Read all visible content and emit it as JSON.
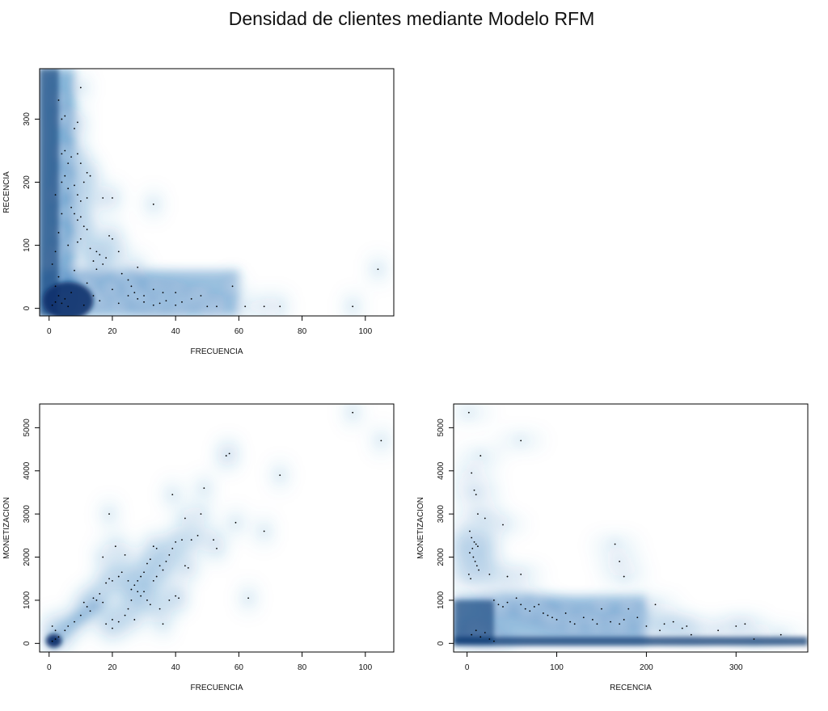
{
  "title": "Densidad de clientes mediante Modelo RFM",
  "colors": {
    "density_dark": "#08306b",
    "density_mid": "#2b7bba",
    "density_light": "#c6dbef",
    "background": "#ffffff",
    "points": "#000000"
  },
  "chart_data": [
    {
      "type": "scatter",
      "subtype": "smooth-density-scatter",
      "xlabel": "FRECUENCIA",
      "ylabel": "RECENCIA",
      "xlim": [
        -3,
        109
      ],
      "ylim": [
        -12,
        380
      ],
      "xticks": [
        0,
        20,
        40,
        60,
        80,
        100
      ],
      "yticks": [
        0,
        100,
        200,
        300
      ],
      "grid": false,
      "points": [
        [
          1,
          5
        ],
        [
          2,
          10
        ],
        [
          3,
          20
        ],
        [
          2,
          35
        ],
        [
          4,
          8
        ],
        [
          5,
          15
        ],
        [
          6,
          3
        ],
        [
          7,
          25
        ],
        [
          3,
          50
        ],
        [
          1,
          70
        ],
        [
          2,
          90
        ],
        [
          3,
          120
        ],
        [
          4,
          150
        ],
        [
          2,
          180
        ],
        [
          4,
          200
        ],
        [
          5,
          210
        ],
        [
          6,
          190
        ],
        [
          7,
          240
        ],
        [
          4,
          245
        ],
        [
          5,
          250
        ],
        [
          6,
          230
        ],
        [
          4,
          300
        ],
        [
          3,
          330
        ],
        [
          5,
          305
        ],
        [
          8,
          285
        ],
        [
          9,
          295
        ],
        [
          10,
          350
        ],
        [
          9,
          245
        ],
        [
          10,
          230
        ],
        [
          12,
          215
        ],
        [
          13,
          210
        ],
        [
          11,
          200
        ],
        [
          8,
          195
        ],
        [
          9,
          180
        ],
        [
          12,
          175
        ],
        [
          10,
          170
        ],
        [
          7,
          160
        ],
        [
          8,
          150
        ],
        [
          9,
          140
        ],
        [
          10,
          145
        ],
        [
          11,
          130
        ],
        [
          12,
          125
        ],
        [
          10,
          110
        ],
        [
          9,
          105
        ],
        [
          13,
          95
        ],
        [
          15,
          90
        ],
        [
          14,
          75
        ],
        [
          16,
          85
        ],
        [
          18,
          80
        ],
        [
          17,
          70
        ],
        [
          20,
          110
        ],
        [
          19,
          115
        ],
        [
          22,
          90
        ],
        [
          25,
          45
        ],
        [
          26,
          35
        ],
        [
          27,
          25
        ],
        [
          28,
          15
        ],
        [
          30,
          10
        ],
        [
          33,
          5
        ],
        [
          35,
          8
        ],
        [
          37,
          12
        ],
        [
          40,
          5
        ],
        [
          42,
          10
        ],
        [
          45,
          15
        ],
        [
          48,
          20
        ],
        [
          33,
          30
        ],
        [
          36,
          25
        ],
        [
          30,
          20
        ],
        [
          25,
          20
        ],
        [
          20,
          30
        ],
        [
          17,
          175
        ],
        [
          20,
          175
        ],
        [
          33,
          165
        ],
        [
          15,
          62
        ],
        [
          23,
          55
        ],
        [
          28,
          65
        ],
        [
          40,
          25
        ],
        [
          50,
          3
        ],
        [
          53,
          3
        ],
        [
          58,
          35
        ],
        [
          62,
          3
        ],
        [
          68,
          3
        ],
        [
          73,
          3
        ],
        [
          96,
          3
        ],
        [
          104,
          62
        ],
        [
          12,
          40
        ],
        [
          14,
          20
        ],
        [
          8,
          60
        ],
        [
          6,
          100
        ],
        [
          11,
          5
        ],
        [
          16,
          12
        ],
        [
          22,
          8
        ]
      ]
    },
    {
      "type": "scatter",
      "subtype": "smooth-density-scatter",
      "xlabel": "FRECUENCIA",
      "ylabel": "MONETIZACION",
      "xlim": [
        -3,
        109
      ],
      "ylim": [
        -200,
        5550
      ],
      "xticks": [
        0,
        20,
        40,
        60,
        80,
        100
      ],
      "yticks": [
        0,
        1000,
        2000,
        3000,
        4000,
        5000
      ],
      "grid": false,
      "points": [
        [
          1,
          50
        ],
        [
          2,
          100
        ],
        [
          3,
          150
        ],
        [
          1,
          400
        ],
        [
          2,
          300
        ],
        [
          5,
          300
        ],
        [
          6,
          400
        ],
        [
          8,
          500
        ],
        [
          10,
          650
        ],
        [
          12,
          850
        ],
        [
          11,
          950
        ],
        [
          14,
          1050
        ],
        [
          16,
          1150
        ],
        [
          17,
          950
        ],
        [
          18,
          1400
        ],
        [
          19,
          1500
        ],
        [
          20,
          1450
        ],
        [
          17,
          2000
        ],
        [
          19,
          3000
        ],
        [
          21,
          2250
        ],
        [
          22,
          1550
        ],
        [
          23,
          1650
        ],
        [
          24,
          2050
        ],
        [
          25,
          1450
        ],
        [
          26,
          1250
        ],
        [
          27,
          1350
        ],
        [
          28,
          1450
        ],
        [
          29,
          1550
        ],
        [
          30,
          1650
        ],
        [
          31,
          1850
        ],
        [
          32,
          1950
        ],
        [
          33,
          2250
        ],
        [
          34,
          2200
        ],
        [
          35,
          1800
        ],
        [
          36,
          1700
        ],
        [
          37,
          1900
        ],
        [
          38,
          2050
        ],
        [
          39,
          2200
        ],
        [
          40,
          2350
        ],
        [
          42,
          2400
        ],
        [
          43,
          1800
        ],
        [
          44,
          1750
        ],
        [
          45,
          2400
        ],
        [
          47,
          2500
        ],
        [
          48,
          3000
        ],
        [
          49,
          3600
        ],
        [
          52,
          2400
        ],
        [
          53,
          2200
        ],
        [
          56,
          4350
        ],
        [
          57,
          4400
        ],
        [
          59,
          2800
        ],
        [
          63,
          1050
        ],
        [
          68,
          2600
        ],
        [
          73,
          3900
        ],
        [
          96,
          5350
        ],
        [
          105,
          4700
        ],
        [
          39,
          3450
        ],
        [
          43,
          2900
        ],
        [
          30,
          1200
        ],
        [
          31,
          1000
        ],
        [
          32,
          900
        ],
        [
          35,
          800
        ],
        [
          36,
          450
        ],
        [
          38,
          1000
        ],
        [
          40,
          1100
        ],
        [
          41,
          1050
        ],
        [
          25,
          800
        ],
        [
          24,
          650
        ],
        [
          27,
          550
        ],
        [
          22,
          500
        ],
        [
          20,
          550
        ],
        [
          18,
          450
        ],
        [
          20,
          350
        ],
        [
          26,
          1000
        ],
        [
          28,
          1200
        ],
        [
          29,
          1100
        ],
        [
          33,
          1450
        ],
        [
          34,
          1550
        ],
        [
          15,
          1000
        ],
        [
          13,
          750
        ]
      ]
    },
    {
      "type": "scatter",
      "subtype": "smooth-density-scatter",
      "xlabel": "RECENCIA",
      "ylabel": "MONETIZACION",
      "xlim": [
        -15,
        380
      ],
      "ylim": [
        -200,
        5550
      ],
      "xticks": [
        0,
        100,
        200,
        300
      ],
      "yticks": [
        0,
        1000,
        2000,
        3000,
        4000,
        5000
      ],
      "grid": false,
      "points": [
        [
          2,
          5350
        ],
        [
          60,
          4700
        ],
        [
          15,
          4350
        ],
        [
          5,
          3950
        ],
        [
          8,
          3550
        ],
        [
          10,
          3450
        ],
        [
          12,
          3000
        ],
        [
          20,
          2900
        ],
        [
          40,
          2750
        ],
        [
          3,
          2600
        ],
        [
          5,
          2450
        ],
        [
          8,
          2350
        ],
        [
          10,
          2300
        ],
        [
          12,
          2250
        ],
        [
          6,
          2200
        ],
        [
          3,
          2100
        ],
        [
          7,
          2000
        ],
        [
          9,
          1900
        ],
        [
          11,
          1800
        ],
        [
          13,
          1700
        ],
        [
          2,
          1600
        ],
        [
          4,
          1500
        ],
        [
          25,
          1600
        ],
        [
          45,
          1550
        ],
        [
          60,
          1600
        ],
        [
          165,
          2300
        ],
        [
          170,
          1900
        ],
        [
          175,
          1550
        ],
        [
          30,
          1000
        ],
        [
          35,
          900
        ],
        [
          40,
          850
        ],
        [
          45,
          950
        ],
        [
          55,
          1050
        ],
        [
          60,
          900
        ],
        [
          65,
          800
        ],
        [
          70,
          750
        ],
        [
          75,
          850
        ],
        [
          80,
          900
        ],
        [
          85,
          700
        ],
        [
          90,
          650
        ],
        [
          95,
          600
        ],
        [
          100,
          550
        ],
        [
          110,
          700
        ],
        [
          115,
          500
        ],
        [
          120,
          450
        ],
        [
          130,
          600
        ],
        [
          140,
          550
        ],
        [
          145,
          450
        ],
        [
          150,
          800
        ],
        [
          160,
          500
        ],
        [
          170,
          450
        ],
        [
          175,
          550
        ],
        [
          180,
          800
        ],
        [
          190,
          600
        ],
        [
          200,
          400
        ],
        [
          210,
          900
        ],
        [
          215,
          300
        ],
        [
          220,
          450
        ],
        [
          230,
          500
        ],
        [
          240,
          350
        ],
        [
          245,
          400
        ],
        [
          250,
          200
        ],
        [
          280,
          300
        ],
        [
          300,
          400
        ],
        [
          310,
          450
        ],
        [
          320,
          100
        ],
        [
          350,
          200
        ],
        [
          5,
          200
        ],
        [
          10,
          300
        ],
        [
          15,
          150
        ],
        [
          20,
          250
        ],
        [
          25,
          100
        ],
        [
          30,
          50
        ]
      ]
    }
  ]
}
